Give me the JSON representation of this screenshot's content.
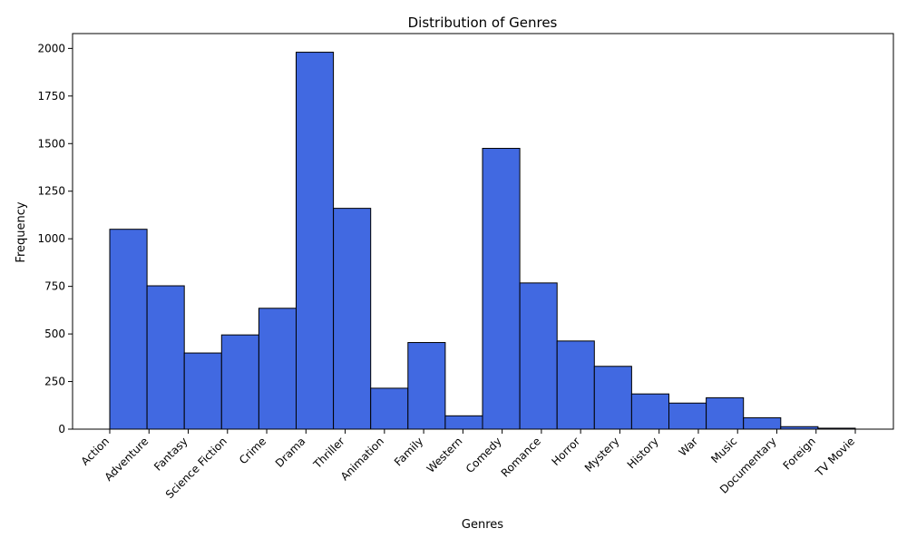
{
  "chart_data": {
    "type": "bar",
    "title": "Distribution of Genres",
    "xlabel": "Genres",
    "ylabel": "Frequency",
    "ylim": [
      0,
      2078
    ],
    "yticks": [
      0,
      250,
      500,
      750,
      1000,
      1250,
      1500,
      1750,
      2000
    ],
    "categories": [
      "Action",
      "Adventure",
      "Fantasy",
      "Science Fiction",
      "Crime",
      "Drama",
      "Thriller",
      "Animation",
      "Family",
      "Western",
      "Comedy",
      "Romance",
      "Horror",
      "Mystery",
      "History",
      "War",
      "Music",
      "Documentary",
      "Foreign",
      "TV Movie"
    ],
    "values": [
      1050,
      753,
      400,
      495,
      635,
      1980,
      1160,
      215,
      455,
      70,
      1475,
      768,
      463,
      330,
      185,
      137,
      165,
      60,
      13,
      5
    ],
    "bar_color": "#4169e1",
    "edge_color": "#000000",
    "grid": false,
    "legend": "none"
  }
}
